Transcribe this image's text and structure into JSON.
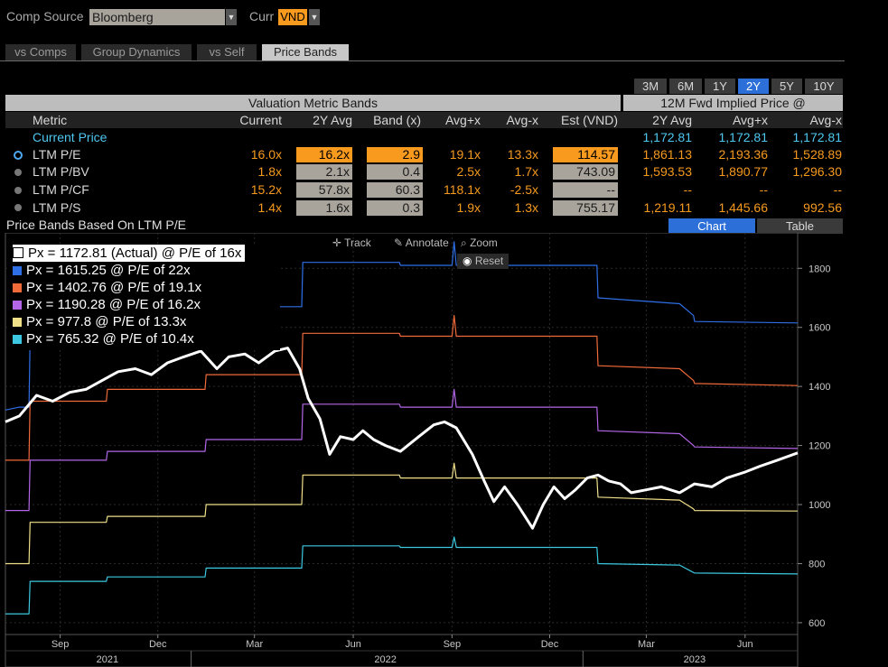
{
  "header": {
    "comp_source_label": "Comp Source",
    "comp_source_value": "Bloomberg",
    "curr_label": "Curr",
    "curr_value": "VND"
  },
  "tabs": [
    {
      "label": "vs Comps",
      "active": false
    },
    {
      "label": "Group Dynamics",
      "active": false
    },
    {
      "label": "vs Self",
      "active": false
    },
    {
      "label": "Price Bands",
      "active": true
    }
  ],
  "periods": [
    "3M",
    "6M",
    "1Y",
    "2Y",
    "5Y",
    "10Y"
  ],
  "selected_period": "2Y",
  "table": {
    "left_title": "Valuation Metric Bands",
    "right_title": "12M Fwd Implied Price @",
    "columns": [
      "Metric",
      "Current",
      "2Y Avg",
      "Band (x)",
      "Avg+x",
      "Avg-x",
      "Est (VND)",
      "2Y Avg",
      "Avg+x",
      "Avg-x"
    ],
    "current_price_row": {
      "label": "Current Price",
      "v2yavg": "1,172.81",
      "vavgplus": "1,172.81",
      "vavgminus": "1,172.81"
    },
    "rows": [
      {
        "label": "LTM P/E",
        "current": "16.0x",
        "avg2y": "16.2x",
        "band": "2.9",
        "avgplus": "19.1x",
        "avgminus": "13.3x",
        "est": "114.57",
        "p2yavg": "1,861.13",
        "pavgplus": "2,193.36",
        "pavgminus": "1,528.89",
        "selected": true
      },
      {
        "label": "LTM P/BV",
        "current": "1.8x",
        "avg2y": "2.1x",
        "band": "0.4",
        "avgplus": "2.5x",
        "avgminus": "1.7x",
        "est": "743.09",
        "p2yavg": "1,593.53",
        "pavgplus": "1,890.77",
        "pavgminus": "1,296.30",
        "selected": false
      },
      {
        "label": "LTM P/CF",
        "current": "15.2x",
        "avg2y": "57.8x",
        "band": "60.3",
        "avgplus": "118.1x",
        "avgminus": "-2.5x",
        "est": "--",
        "p2yavg": "--",
        "pavgplus": "--",
        "pavgminus": "--",
        "selected": false
      },
      {
        "label": "LTM P/S",
        "current": "1.4x",
        "avg2y": "1.6x",
        "band": "0.3",
        "avgplus": "1.9x",
        "avgminus": "1.3x",
        "est": "755.17",
        "p2yavg": "1,219.11",
        "pavgplus": "1,445.66",
        "pavgminus": "992.56",
        "selected": false
      }
    ]
  },
  "chart_section": {
    "title": "Price Bands Based On LTM P/E",
    "chart_btn": "Chart",
    "table_btn": "Table",
    "tools": {
      "track": "Track",
      "annotate": "Annotate",
      "zoom": "Zoom",
      "reset": "Reset"
    }
  },
  "colors": {
    "actual": "#ffffff",
    "p22": "#2f6fe6",
    "p191": "#f06a3a",
    "p162": "#b466e8",
    "p133": "#f0e08a",
    "p104": "#3cc8e0"
  },
  "chart_data": {
    "type": "line",
    "legend": [
      "Px = 1172.81 (Actual) @ P/E of 16x",
      "Px = 1615.25 @ P/E of 22x",
      "Px = 1402.76 @ P/E of 19.1x",
      "Px = 1190.28 @ P/E of 16.2x",
      "Px = 977.8 @ P/E of 13.3x",
      "Px = 765.32 @ P/E of 10.4x"
    ],
    "y_ticks": [
      600,
      800,
      1000,
      1200,
      1400,
      1600,
      1800
    ],
    "ylim": [
      560,
      1920
    ],
    "x_ticks": [
      "Sep",
      "Dec",
      "Mar",
      "Jun",
      "Sep",
      "Dec",
      "Mar",
      "Jun"
    ],
    "x_years": [
      "2021",
      "2022",
      "2023"
    ],
    "x_range": [
      "2021-07-12",
      "2023-07-20"
    ],
    "x_tick_dates": [
      "2021-09-01",
      "2021-12-01",
      "2022-03-01",
      "2022-06-01",
      "2022-09-01",
      "2022-12-01",
      "2023-03-01",
      "2023-06-01"
    ],
    "year_dividers": [
      "2022-01-01",
      "2023-01-01"
    ],
    "year_label_dates": [
      "2021-10-15",
      "2022-07-01",
      "2023-04-15"
    ],
    "series": [
      {
        "name": "Px = 1172.81 (Actual) @ P/E of 16x",
        "color": "#ffffff",
        "points": [
          [
            "2021-07-12",
            1280
          ],
          [
            "2021-07-25",
            1300
          ],
          [
            "2021-08-10",
            1370
          ],
          [
            "2021-08-25",
            1350
          ],
          [
            "2021-09-10",
            1380
          ],
          [
            "2021-09-25",
            1390
          ],
          [
            "2021-10-10",
            1420
          ],
          [
            "2021-10-25",
            1450
          ],
          [
            "2021-11-10",
            1460
          ],
          [
            "2021-11-25",
            1440
          ],
          [
            "2021-12-10",
            1480
          ],
          [
            "2021-12-25",
            1500
          ],
          [
            "2022-01-10",
            1520
          ],
          [
            "2022-01-25",
            1460
          ],
          [
            "2022-02-05",
            1500
          ],
          [
            "2022-02-20",
            1510
          ],
          [
            "2022-03-05",
            1480
          ],
          [
            "2022-03-20",
            1520
          ],
          [
            "2022-04-01",
            1530
          ],
          [
            "2022-04-12",
            1460
          ],
          [
            "2022-04-20",
            1360
          ],
          [
            "2022-05-01",
            1290
          ],
          [
            "2022-05-10",
            1170
          ],
          [
            "2022-05-20",
            1230
          ],
          [
            "2022-06-01",
            1220
          ],
          [
            "2022-06-10",
            1250
          ],
          [
            "2022-06-20",
            1220
          ],
          [
            "2022-07-01",
            1200
          ],
          [
            "2022-07-15",
            1180
          ],
          [
            "2022-08-01",
            1230
          ],
          [
            "2022-08-15",
            1270
          ],
          [
            "2022-08-25",
            1280
          ],
          [
            "2022-09-05",
            1260
          ],
          [
            "2022-09-20",
            1170
          ],
          [
            "2022-10-01",
            1080
          ],
          [
            "2022-10-10",
            1010
          ],
          [
            "2022-10-20",
            1060
          ],
          [
            "2022-11-01",
            1000
          ],
          [
            "2022-11-15",
            920
          ],
          [
            "2022-11-25",
            1000
          ],
          [
            "2022-12-05",
            1060
          ],
          [
            "2022-12-15",
            1020
          ],
          [
            "2022-12-25",
            1050
          ],
          [
            "2023-01-05",
            1090
          ],
          [
            "2023-01-15",
            1100
          ],
          [
            "2023-01-25",
            1080
          ],
          [
            "2023-02-05",
            1070
          ],
          [
            "2023-02-15",
            1040
          ],
          [
            "2023-03-01",
            1050
          ],
          [
            "2023-03-15",
            1060
          ],
          [
            "2023-04-01",
            1040
          ],
          [
            "2023-04-15",
            1070
          ],
          [
            "2023-05-01",
            1060
          ],
          [
            "2023-05-15",
            1090
          ],
          [
            "2023-06-01",
            1110
          ],
          [
            "2023-06-15",
            1130
          ],
          [
            "2023-07-01",
            1150
          ],
          [
            "2023-07-20",
            1175
          ]
        ]
      },
      {
        "name": "Px = 1615.25 @ P/E of 22x",
        "color": "#2f6fe6",
        "points": [
          [
            "2021-07-12",
            1320
          ],
          [
            "2021-07-25",
            1330
          ],
          [
            "2021-08-03",
            1330
          ],
          [
            "2021-08-04",
            1560
          ],
          [
            "2021-10-14",
            1560
          ],
          [
            "2021-10-15",
            1600
          ],
          [
            "2022-01-14",
            1600
          ],
          [
            "2022-01-15",
            1670
          ],
          [
            "2022-04-14",
            1670
          ],
          [
            "2022-04-15",
            1820
          ],
          [
            "2022-07-14",
            1820
          ],
          [
            "2022-07-15",
            1810
          ],
          [
            "2022-09-01",
            1810
          ],
          [
            "2022-09-03",
            1890
          ],
          [
            "2022-09-05",
            1810
          ],
          [
            "2023-01-14",
            1810
          ],
          [
            "2023-01-15",
            1700
          ],
          [
            "2023-04-01",
            1680
          ],
          [
            "2023-04-14",
            1640
          ],
          [
            "2023-04-15",
            1620
          ],
          [
            "2023-07-20",
            1615
          ]
        ]
      },
      {
        "name": "Px = 1402.76 @ P/E of 19.1x",
        "color": "#f06a3a",
        "points": [
          [
            "2021-07-12",
            1150
          ],
          [
            "2021-08-03",
            1150
          ],
          [
            "2021-08-04",
            1350
          ],
          [
            "2021-10-14",
            1350
          ],
          [
            "2021-10-15",
            1390
          ],
          [
            "2022-01-14",
            1390
          ],
          [
            "2022-01-15",
            1440
          ],
          [
            "2022-04-14",
            1440
          ],
          [
            "2022-04-15",
            1580
          ],
          [
            "2022-07-14",
            1580
          ],
          [
            "2022-07-15",
            1570
          ],
          [
            "2022-09-01",
            1570
          ],
          [
            "2022-09-03",
            1640
          ],
          [
            "2022-09-05",
            1570
          ],
          [
            "2023-01-14",
            1570
          ],
          [
            "2023-01-15",
            1470
          ],
          [
            "2023-04-01",
            1460
          ],
          [
            "2023-04-14",
            1420
          ],
          [
            "2023-04-15",
            1410
          ],
          [
            "2023-07-20",
            1403
          ]
        ]
      },
      {
        "name": "Px = 1190.28 @ P/E of 16.2x",
        "color": "#b466e8",
        "points": [
          [
            "2021-07-12",
            980
          ],
          [
            "2021-08-03",
            980
          ],
          [
            "2021-08-04",
            1150
          ],
          [
            "2021-10-14",
            1150
          ],
          [
            "2021-10-15",
            1180
          ],
          [
            "2022-01-14",
            1180
          ],
          [
            "2022-01-15",
            1220
          ],
          [
            "2022-04-14",
            1220
          ],
          [
            "2022-04-15",
            1340
          ],
          [
            "2022-07-14",
            1340
          ],
          [
            "2022-07-15",
            1330
          ],
          [
            "2022-09-01",
            1330
          ],
          [
            "2022-09-03",
            1390
          ],
          [
            "2022-09-05",
            1330
          ],
          [
            "2023-01-14",
            1330
          ],
          [
            "2023-01-15",
            1250
          ],
          [
            "2023-04-01",
            1240
          ],
          [
            "2023-04-14",
            1200
          ],
          [
            "2023-04-15",
            1195
          ],
          [
            "2023-07-20",
            1190
          ]
        ]
      },
      {
        "name": "Px = 977.8 @ P/E of 13.3x",
        "color": "#f0e08a",
        "points": [
          [
            "2021-07-12",
            800
          ],
          [
            "2021-08-03",
            800
          ],
          [
            "2021-08-04",
            940
          ],
          [
            "2021-10-14",
            940
          ],
          [
            "2021-10-15",
            960
          ],
          [
            "2022-01-14",
            960
          ],
          [
            "2022-01-15",
            1000
          ],
          [
            "2022-04-14",
            1000
          ],
          [
            "2022-04-15",
            1100
          ],
          [
            "2022-07-14",
            1100
          ],
          [
            "2022-07-15",
            1090
          ],
          [
            "2022-09-01",
            1090
          ],
          [
            "2022-09-03",
            1140
          ],
          [
            "2022-09-05",
            1090
          ],
          [
            "2023-01-14",
            1090
          ],
          [
            "2023-01-15",
            1025
          ],
          [
            "2023-04-01",
            1015
          ],
          [
            "2023-04-14",
            985
          ],
          [
            "2023-04-15",
            980
          ],
          [
            "2023-07-20",
            978
          ]
        ]
      },
      {
        "name": "Px = 765.32 @ P/E of 10.4x",
        "color": "#3cc8e0",
        "points": [
          [
            "2021-07-12",
            630
          ],
          [
            "2021-08-03",
            630
          ],
          [
            "2021-08-04",
            740
          ],
          [
            "2021-10-14",
            740
          ],
          [
            "2021-10-15",
            755
          ],
          [
            "2022-01-14",
            755
          ],
          [
            "2022-01-15",
            785
          ],
          [
            "2022-04-14",
            785
          ],
          [
            "2022-04-15",
            860
          ],
          [
            "2022-07-14",
            860
          ],
          [
            "2022-07-15",
            855
          ],
          [
            "2022-09-01",
            855
          ],
          [
            "2022-09-03",
            890
          ],
          [
            "2022-09-05",
            855
          ],
          [
            "2023-01-14",
            855
          ],
          [
            "2023-01-15",
            800
          ],
          [
            "2023-04-01",
            795
          ],
          [
            "2023-04-14",
            770
          ],
          [
            "2023-04-15",
            768
          ],
          [
            "2023-07-20",
            765
          ]
        ]
      }
    ]
  }
}
